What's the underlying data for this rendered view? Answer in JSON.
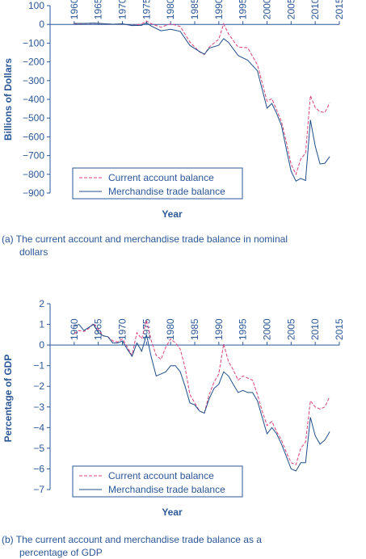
{
  "colors": {
    "axis": "#2b5797",
    "current": "#d9417a",
    "merch": "#1f4e89",
    "text": "#2b5797"
  },
  "chart_data": [
    {
      "type": "line",
      "ylabel": "Billions of Dollars",
      "xlabel": "Year",
      "ylim": [
        -900,
        100
      ],
      "xlim": [
        1955,
        2015
      ],
      "yticks": [
        100,
        0,
        -100,
        -200,
        -300,
        -400,
        -500,
        -600,
        -700,
        -800,
        -900
      ],
      "xticks": [
        1960,
        1965,
        1970,
        1975,
        1980,
        1985,
        1990,
        1995,
        2000,
        2005,
        2010,
        2015
      ],
      "legend": "bottom-left",
      "series": [
        {
          "name": "Current account balance",
          "style": "dashed",
          "x": [
            1960,
            1962,
            1964,
            1966,
            1968,
            1970,
            1972,
            1974,
            1975,
            1976,
            1978,
            1980,
            1982,
            1984,
            1986,
            1987,
            1988,
            1990,
            1991,
            1992,
            1994,
            1996,
            1998,
            2000,
            2001,
            2002,
            2003,
            2004,
            2005,
            2006,
            2007,
            2008,
            2009,
            2010,
            2011,
            2012,
            2013
          ],
          "y": [
            3,
            4,
            7,
            3,
            1,
            2,
            -6,
            2,
            18,
            4,
            -15,
            3,
            -11,
            -94,
            -147,
            -161,
            -121,
            -79,
            3,
            -51,
            -121,
            -125,
            -215,
            -410,
            -396,
            -457,
            -519,
            -628,
            -746,
            -800,
            -718,
            -686,
            -380,
            -444,
            -466,
            -470,
            -420
          ]
        },
        {
          "name": "Merchandise trade balance",
          "style": "solid",
          "x": [
            1960,
            1962,
            1964,
            1966,
            1968,
            1970,
            1972,
            1974,
            1975,
            1976,
            1978,
            1980,
            1982,
            1984,
            1986,
            1987,
            1988,
            1990,
            1991,
            1992,
            1994,
            1996,
            1998,
            2000,
            2001,
            2002,
            2003,
            2004,
            2005,
            2006,
            2007,
            2008,
            2009,
            2010,
            2011,
            2012,
            2013
          ],
          "y": [
            5,
            5,
            7,
            4,
            1,
            3,
            -6,
            -5,
            9,
            -9,
            -34,
            -26,
            -37,
            -112,
            -145,
            -159,
            -127,
            -111,
            -76,
            -96,
            -166,
            -191,
            -248,
            -447,
            -422,
            -475,
            -540,
            -665,
            -783,
            -836,
            -822,
            -833,
            -510,
            -650,
            -745,
            -741,
            -705
          ]
        }
      ]
    },
    {
      "type": "line",
      "ylabel": "Percentage of GDP",
      "xlabel": "Year",
      "ylim": [
        -7,
        2
      ],
      "xlim": [
        1955,
        2015
      ],
      "yticks": [
        2,
        1,
        0,
        -1,
        -2,
        -3,
        -4,
        -5,
        -6,
        -7
      ],
      "xticks": [
        1960,
        1965,
        1970,
        1975,
        1980,
        1985,
        1990,
        1995,
        2000,
        2005,
        2010,
        2015
      ],
      "legend": "bottom-left",
      "series": [
        {
          "name": "Current  account balance",
          "style": "dashed",
          "x": [
            1960,
            1961,
            1962,
            1963,
            1964,
            1965,
            1966,
            1967,
            1968,
            1969,
            1970,
            1971,
            1972,
            1973,
            1974,
            1975,
            1976,
            1977,
            1978,
            1979,
            1980,
            1981,
            1982,
            1983,
            1984,
            1985,
            1986,
            1987,
            1988,
            1989,
            1990,
            1991,
            1992,
            1993,
            1994,
            1995,
            1996,
            1997,
            1998,
            1999,
            2000,
            2001,
            2002,
            2003,
            2004,
            2005,
            2006,
            2007,
            2008,
            2009,
            2010,
            2011,
            2012,
            2013
          ],
          "y": [
            0.55,
            0.7,
            0.65,
            0.8,
            1.05,
            0.75,
            0.45,
            0.4,
            0.2,
            0.15,
            0.3,
            -0.1,
            -0.5,
            0.6,
            0.3,
            1.2,
            0.2,
            -0.5,
            -0.7,
            -0.1,
            0.3,
            0.1,
            -0.2,
            -1.1,
            -2.4,
            -2.8,
            -3.2,
            -3.3,
            -2.4,
            -1.8,
            -1.4,
            0.05,
            -0.8,
            -1.2,
            -1.7,
            -1.5,
            -1.6,
            -1.7,
            -2.4,
            -3.2,
            -3.9,
            -3.7,
            -4.2,
            -4.6,
            -5.2,
            -5.7,
            -5.8,
            -5.0,
            -4.7,
            -2.7,
            -3.0,
            -3.1,
            -3.0,
            -2.5
          ]
        },
        {
          "name": "Merchandise trade balance",
          "style": "solid",
          "x": [
            1960,
            1961,
            1962,
            1963,
            1964,
            1965,
            1966,
            1967,
            1968,
            1969,
            1970,
            1971,
            1972,
            1973,
            1974,
            1975,
            1976,
            1977,
            1978,
            1979,
            1980,
            1981,
            1982,
            1983,
            1984,
            1985,
            1986,
            1987,
            1988,
            1989,
            1990,
            1991,
            1992,
            1993,
            1994,
            1995,
            1996,
            1997,
            1998,
            1999,
            2000,
            2001,
            2002,
            2003,
            2004,
            2005,
            2006,
            2007,
            2008,
            2009,
            2010,
            2011,
            2012,
            2013
          ],
          "y": [
            0.9,
            1.0,
            0.7,
            0.85,
            1.0,
            0.6,
            0.45,
            0.4,
            0.1,
            0.1,
            0.2,
            -0.2,
            -0.55,
            0.1,
            -0.3,
            0.5,
            -0.6,
            -1.5,
            -1.4,
            -1.3,
            -1.0,
            -1.0,
            -1.3,
            -2.0,
            -2.8,
            -2.9,
            -3.2,
            -3.3,
            -2.6,
            -2.1,
            -1.9,
            -1.3,
            -1.5,
            -1.9,
            -2.3,
            -2.2,
            -2.3,
            -2.3,
            -2.7,
            -3.5,
            -4.3,
            -4.0,
            -4.3,
            -4.8,
            -5.4,
            -6.0,
            -6.1,
            -5.7,
            -5.7,
            -3.5,
            -4.4,
            -4.8,
            -4.6,
            -4.2
          ]
        }
      ]
    }
  ],
  "captions": {
    "a_line1": "(a) The current account and merchandise trade balance in nominal",
    "a_line2": "dollars",
    "b_line1": "(b) The current account and merchandise trade balance as a",
    "b_line2": "percentage of GDP"
  }
}
